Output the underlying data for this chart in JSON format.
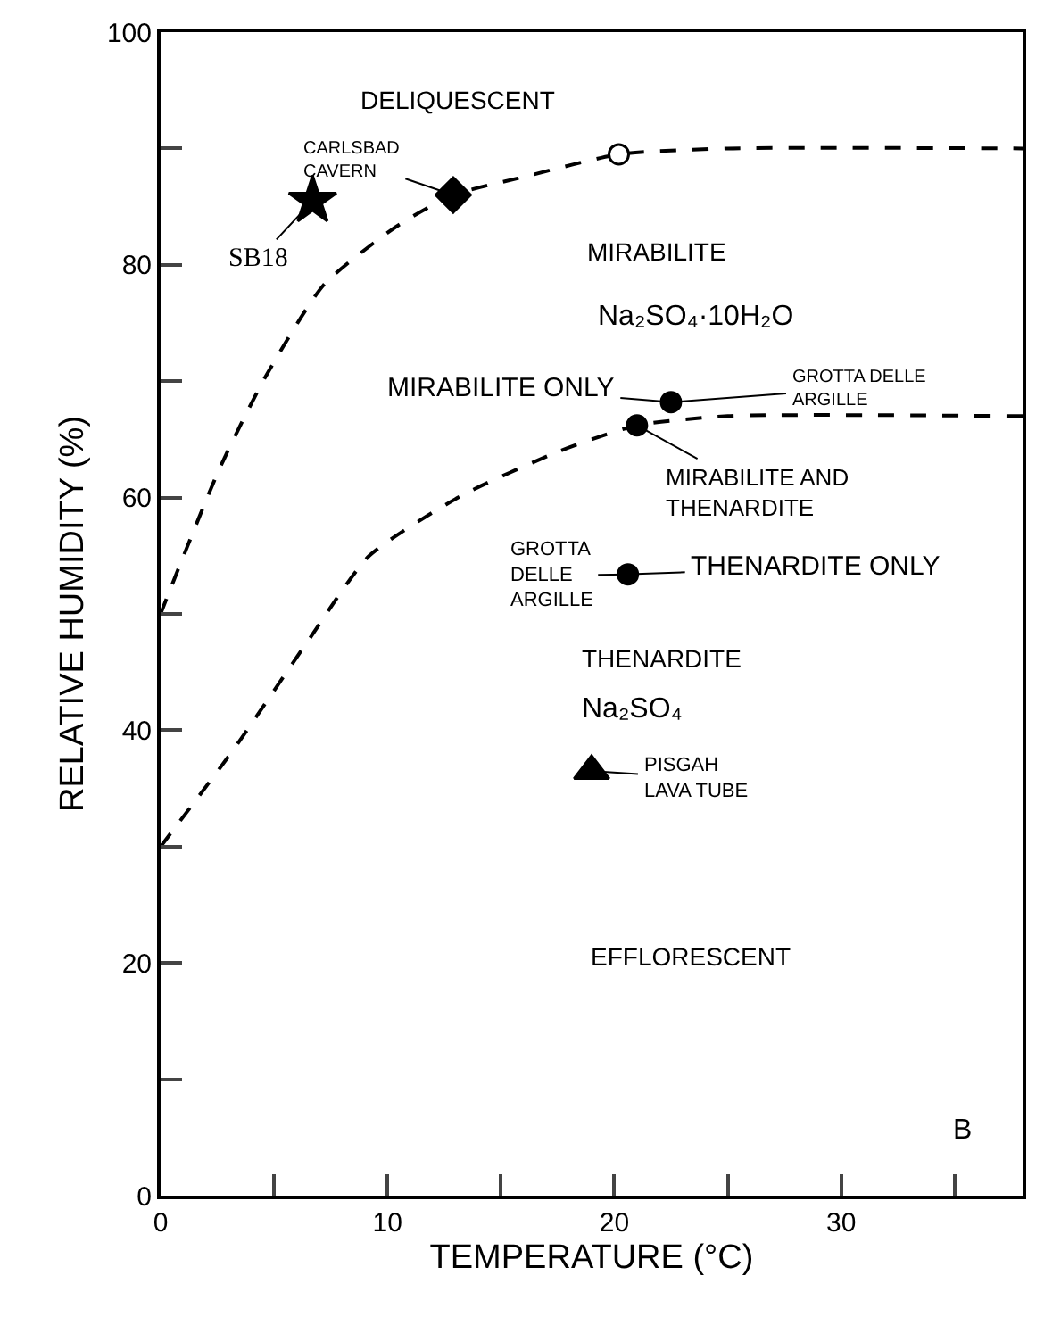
{
  "chart_data": {
    "type": "scatter",
    "xlabel": "TEMPERATURE (°C)",
    "ylabel": "RELATIVE HUMIDITY (%)",
    "xlim": [
      0,
      38
    ],
    "ylim": [
      0,
      100
    ],
    "xticks": [
      0,
      {
        "value": 5,
        "label": null
      },
      10,
      {
        "value": 15,
        "label": null
      },
      20,
      {
        "value": 25,
        "label": null
      },
      30,
      {
        "value": 35,
        "label": null
      }
    ],
    "yticks": [
      0,
      {
        "value": 10,
        "label": null
      },
      20,
      {
        "value": 30,
        "label": null
      },
      40,
      {
        "value": 50,
        "label": null
      },
      60,
      {
        "value": 70,
        "label": null
      },
      80,
      {
        "value": 90,
        "label": null
      },
      100
    ],
    "series": [
      {
        "type": "line",
        "line_style": "dashed",
        "marker": "none",
        "color": "#000000",
        "x": [
          0,
          0.4,
          2.6,
          4.6,
          7.2,
          10.4,
          12.9,
          16.1,
          20.2,
          25,
          38
        ],
        "values": [
          50,
          52,
          62.5,
          70.3,
          78.3,
          83.3,
          86,
          87.6,
          89.5,
          90,
          90
        ]
      },
      {
        "type": "line",
        "line_style": "dashed",
        "marker": "none",
        "color": "#000000",
        "x": [
          0,
          3.2,
          6.4,
          9.2,
          13.3,
          17.6,
          21,
          25,
          38
        ],
        "values": [
          30,
          38.3,
          47.4,
          55,
          60.2,
          64,
          66.2,
          67,
          67
        ]
      },
      {
        "type": "scatter",
        "marker": "star",
        "color": "#000000",
        "x": [
          6.7
        ],
        "values": [
          85.5
        ]
      },
      {
        "type": "scatter",
        "marker": "diamond",
        "color": "#000000",
        "x": [
          12.9
        ],
        "values": [
          86
        ]
      },
      {
        "type": "scatter",
        "marker": "circle",
        "color": "#ffffff",
        "x": [
          20.2
        ],
        "values": [
          89.5
        ]
      },
      {
        "type": "scatter",
        "marker": "circle",
        "color": "#000000",
        "x": [
          22.5,
          21,
          20.6
        ],
        "values": [
          68.2,
          66.2,
          53.4
        ]
      },
      {
        "type": "scatter",
        "marker": "triangle",
        "color": "#000000",
        "x": [
          19
        ],
        "values": [
          36.5
        ]
      }
    ],
    "annotations": [
      "DELIQUESCENT",
      {
        "text": "CARLSBAD\nCAVERN",
        "x": 12.9,
        "y": 86
      },
      {
        "text": "SB18",
        "x": 6.7,
        "y": 85.5
      },
      "MIRABILITE",
      "Na₂SO₄·10H₂O",
      {
        "text": "MIRABILITE ONLY",
        "x": 22.5,
        "y": 68.2
      },
      {
        "text": "GROTTA DELLE\nARGILLE",
        "x": 22.5,
        "y": 68.2
      },
      {
        "text": "MIRABILITE AND\nTHENARDITE",
        "x": 21,
        "y": 66.2
      },
      {
        "text": "GROTTA\nDELLE\nARGILLE",
        "x": 20.6,
        "y": 53.4
      },
      {
        "text": "THENARDITE ONLY",
        "x": 20.6,
        "y": 53.4
      },
      "THENARDITE",
      "Na₂SO₄",
      {
        "text": "PISGAH\nLAVA TUBE",
        "x": 19,
        "y": 36.5
      },
      "EFFLORESCENT",
      "B"
    ]
  }
}
